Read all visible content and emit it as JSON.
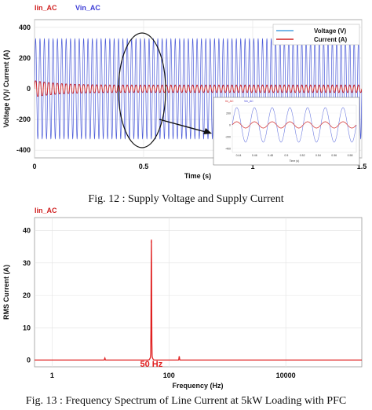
{
  "chart_data": [
    {
      "type": "line",
      "top_tags": [
        {
          "text": "Iin_AC",
          "color": "#d02020"
        },
        {
          "text": "Vin_AC",
          "color": "#3b3bd6"
        }
      ],
      "xlabel": "Time (s)",
      "ylabel": "Voltage (V)/ Current (A)",
      "xlim": [
        0,
        1.5
      ],
      "ylim": [
        -450,
        450
      ],
      "xticks": [
        0,
        0.5,
        1,
        1.5
      ],
      "xtick_labels": [
        "0",
        "0.5",
        "1",
        "1.5"
      ],
      "yticks": [
        400,
        200,
        0,
        -200,
        -400
      ],
      "ytick_labels": [
        "400",
        "200",
        "0",
        "-200",
        "-400"
      ],
      "grid": true,
      "legend_position": "top-right",
      "series": [
        {
          "name": "Voltage (V)",
          "color": "#4a5ad8",
          "amplitude": 325,
          "frequency_hz": 50
        },
        {
          "name": "Current (A)",
          "color": "#d02020",
          "amplitude_start": 60,
          "amplitude_steady": 25,
          "frequency_hz": 50
        }
      ],
      "inset": {
        "tags": [
          {
            "text": "Iin_AC",
            "color": "#d02020"
          },
          {
            "text": "Vin_AC",
            "color": "#3b3bd6"
          }
        ],
        "xlabel": "Time (s)",
        "xtick_labels": [
          "0.44",
          "0.46",
          "0.48",
          "0.5",
          "0.52",
          "0.54",
          "0.56",
          "0.58"
        ],
        "ytick_labels": [
          "200",
          "0",
          "-200",
          "-400"
        ]
      },
      "caption": "Fig. 12 : Supply Voltage and Supply Current"
    },
    {
      "type": "line",
      "top_tags": [
        {
          "text": "Iin_AC",
          "color": "#d02020"
        }
      ],
      "xlabel": "Frequency (Hz)",
      "ylabel": "RMS Current (A)",
      "x_scale": "log",
      "xlim": [
        0.5,
        200000
      ],
      "ylim": [
        -2,
        44
      ],
      "xtick_labels": [
        "1",
        "100",
        "10000"
      ],
      "xtick_values": [
        1,
        100,
        10000
      ],
      "yticks": [
        40,
        30,
        20,
        10,
        0
      ],
      "ytick_labels": [
        "40",
        "30",
        "20",
        "10",
        "0"
      ],
      "grid": true,
      "series": [
        {
          "name": "",
          "color": "#e02020",
          "peaks": [
            {
              "x": 50,
              "y": 36.5
            },
            {
              "x": 8,
              "y": 0.6
            },
            {
              "x": 150,
              "y": 1.1
            }
          ]
        }
      ],
      "annotation": {
        "text": "50 Hz",
        "color": "#e02020"
      },
      "caption": "Fig. 13 : Frequency Spectrum of  Line Current at 5kW Loading with PFC"
    }
  ]
}
